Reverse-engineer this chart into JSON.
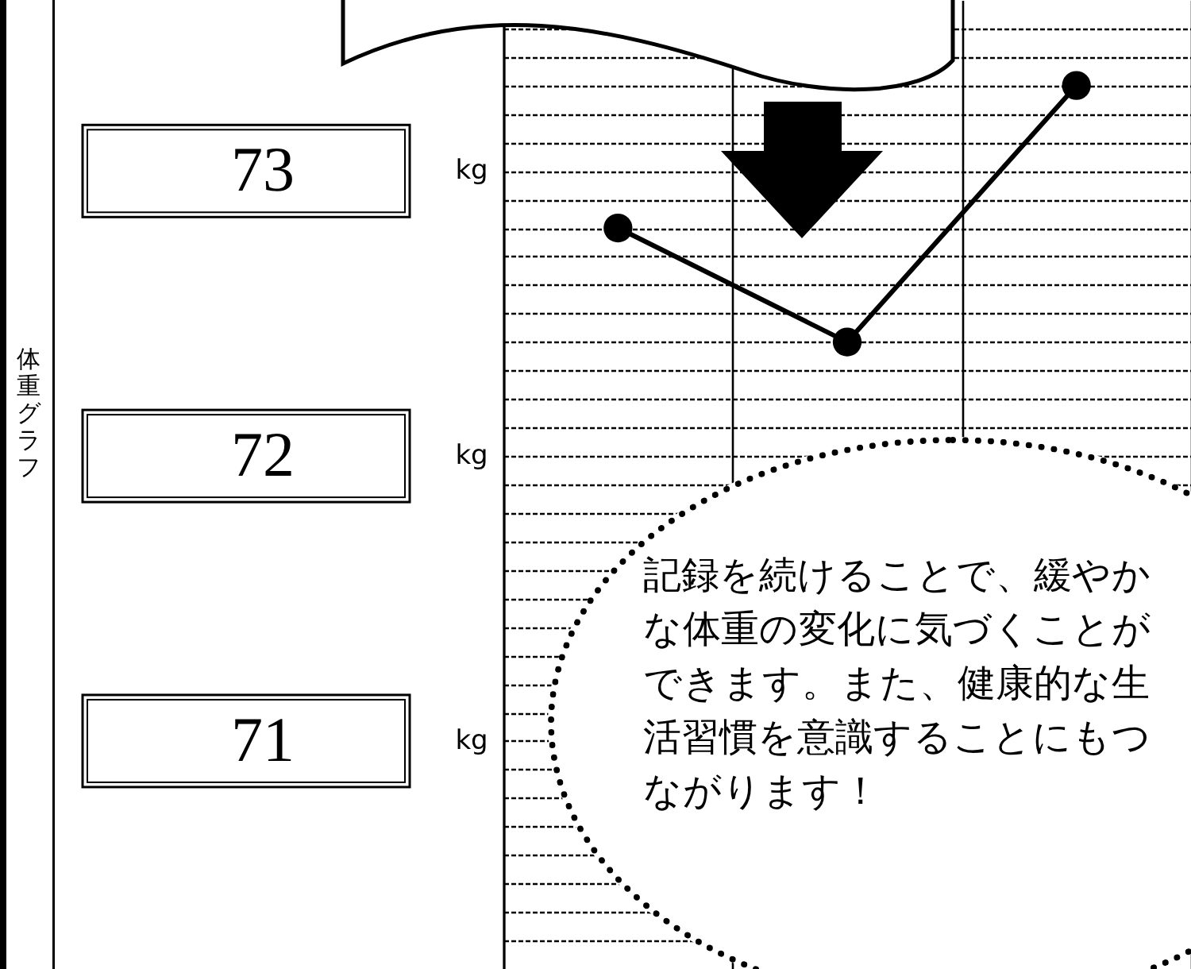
{
  "chart_data": {
    "type": "line",
    "title": "体重グラフ",
    "categories": [
      null,
      null,
      null
    ],
    "series": [
      {
        "color": "#000000",
        "values": [
          72.8,
          72.4,
          73.3
        ]
      }
    ],
    "ylim": [
      70.2,
      73.6
    ],
    "yticks": [
      {
        "value": 70.3,
        "label": null
      },
      {
        "value": 70.4,
        "label": null
      },
      {
        "value": 70.5,
        "label": null
      },
      {
        "value": 70.6,
        "label": null
      },
      {
        "value": 70.7,
        "label": null
      },
      {
        "value": 70.8,
        "label": null
      },
      {
        "value": 70.9,
        "label": null
      },
      71,
      {
        "value": 71.1,
        "label": null
      },
      {
        "value": 71.2,
        "label": null
      },
      {
        "value": 71.3,
        "label": null
      },
      {
        "value": 71.4,
        "label": null
      },
      {
        "value": 71.5,
        "label": null
      },
      {
        "value": 71.6,
        "label": null
      },
      {
        "value": 71.7,
        "label": null
      },
      {
        "value": 71.8,
        "label": null
      },
      {
        "value": 71.9,
        "label": null
      },
      72,
      {
        "value": 72.1,
        "label": null
      },
      {
        "value": 72.2,
        "label": null
      },
      {
        "value": 72.3,
        "label": null
      },
      {
        "value": 72.4,
        "label": null
      },
      {
        "value": 72.5,
        "label": null
      },
      {
        "value": 72.6,
        "label": null
      },
      {
        "value": 72.7,
        "label": null
      },
      {
        "value": 72.8,
        "label": null
      },
      {
        "value": 72.9,
        "label": null
      },
      73,
      {
        "value": 73.1,
        "label": null
      },
      {
        "value": 73.2,
        "label": null
      },
      {
        "value": 73.3,
        "label": null
      },
      {
        "value": 73.4,
        "label": null
      },
      {
        "value": 73.5,
        "label": null
      }
    ],
    "grid": true,
    "marker": "circle",
    "line_style": "solid",
    "tick_labels": "y",
    "annotations": [
      "kg",
      "kg",
      "kg",
      "記録を続けることで、緩やかな体重の変化に気づくことができます。また、健康的な生活習慣を意識することにもつながります！"
    ]
  }
}
